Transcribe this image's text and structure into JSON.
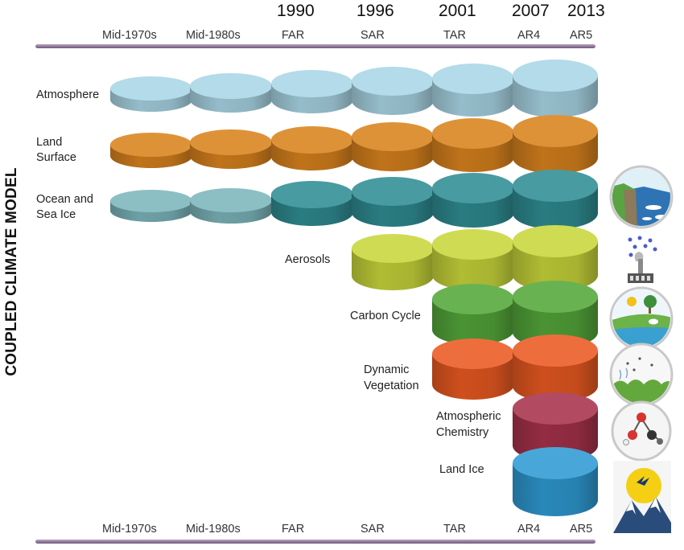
{
  "vertical_title": "COUPLED CLIMATE MODEL",
  "years": [
    "1990",
    "1996",
    "2001",
    "2007",
    "2013"
  ],
  "eras_top": [
    "Mid-1970s",
    "Mid-1980s",
    "FAR",
    "SAR",
    "TAR",
    "AR4",
    "AR5"
  ],
  "eras_bottom": [
    "Mid-1970s",
    "Mid-1980s",
    "FAR",
    "SAR",
    "TAR",
    "AR4",
    "AR5"
  ],
  "rows": {
    "atmosphere": "Atmosphere",
    "land_surface_1": "Land",
    "land_surface_2": "Surface",
    "ocean_1": "Ocean and",
    "ocean_2": "Sea Ice",
    "aerosols": "Aerosols",
    "carbon": "Carbon Cycle",
    "vegetation_1": "Dynamic",
    "vegetation_2": "Vegetation",
    "chemistry_1": "Atmospheric",
    "chemistry_2": "Chemistry",
    "land_ice": "Land Ice"
  },
  "colors": {
    "atmosphere": "#a9d6e6",
    "land_surface": "#d9831d",
    "ocean": "#2f8d93",
    "ocean_flat": "#7cb6bb",
    "aerosols": "#c8d63a",
    "carbon": "#54a73a",
    "vegetation": "#ea5a21",
    "chemistry": "#a8324b",
    "land_ice": "#2f9bd3",
    "timeline_bar": "#8e7598"
  },
  "icons": [
    "sea-ice-coast-icon",
    "aerosol-smokestack-icon",
    "carbon-cycle-landscape-icon",
    "vegetation-icon",
    "molecule-icon",
    "mountain-glacier-icon"
  ]
}
